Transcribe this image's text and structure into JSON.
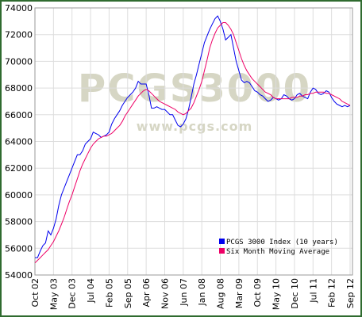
{
  "chart_data": {
    "type": "line",
    "watermark": {
      "title": "PCGS3000",
      "subtitle": "www.pcgs.com"
    },
    "categories": [
      "Oct 02",
      null,
      null,
      null,
      null,
      null,
      null,
      "May 03",
      null,
      null,
      null,
      null,
      null,
      null,
      "Dec 03",
      null,
      null,
      null,
      null,
      null,
      null,
      "Jul 04",
      null,
      null,
      null,
      null,
      null,
      null,
      "Feb 05",
      null,
      null,
      null,
      null,
      null,
      null,
      "Sep 05",
      null,
      null,
      null,
      null,
      null,
      null,
      "Apr 06",
      null,
      null,
      null,
      null,
      null,
      null,
      "Nov 06",
      null,
      null,
      null,
      null,
      null,
      null,
      "Jun 07",
      null,
      null,
      null,
      null,
      null,
      null,
      "Jan 08",
      null,
      null,
      null,
      null,
      null,
      null,
      "Aug 08",
      null,
      null,
      null,
      null,
      null,
      null,
      "Mar 09",
      null,
      null,
      null,
      null,
      null,
      null,
      "Oct 09",
      null,
      null,
      null,
      null,
      null,
      null,
      "May 10",
      null,
      null,
      null,
      null,
      null,
      null,
      "Dec 10",
      null,
      null,
      null,
      null,
      null,
      null,
      "Jul 11",
      null,
      null,
      null,
      null,
      null,
      null,
      "Feb 12",
      null,
      null,
      null,
      null,
      null,
      null,
      "Sep 12"
    ],
    "series": [
      {
        "name": "PCGS 3000 Index (10 years)",
        "color": "#0000ee",
        "values": [
          55300,
          55300,
          55800,
          56200,
          56400,
          57300,
          57000,
          57500,
          58200,
          59200,
          60000,
          60500,
          61000,
          61500,
          62000,
          62500,
          63000,
          63000,
          63300,
          63800,
          64000,
          64200,
          64700,
          64600,
          64500,
          64300,
          64400,
          64500,
          64700,
          65300,
          65700,
          66000,
          66300,
          66700,
          67000,
          67300,
          67500,
          67700,
          68000,
          68500,
          68300,
          68300,
          68300,
          67500,
          66500,
          66500,
          66600,
          66500,
          66400,
          66400,
          66200,
          66000,
          66000,
          65600,
          65200,
          65100,
          65300,
          65700,
          66400,
          67300,
          68300,
          69000,
          69800,
          70600,
          71400,
          71900,
          72400,
          72800,
          73200,
          73400,
          73000,
          72400,
          71600,
          71800,
          72000,
          71000,
          70000,
          69300,
          68600,
          68400,
          68500,
          68400,
          68100,
          67800,
          67700,
          67500,
          67400,
          67200,
          67000,
          67100,
          67300,
          67200,
          67100,
          67200,
          67500,
          67400,
          67200,
          67100,
          67200,
          67500,
          67600,
          67400,
          67300,
          67200,
          67700,
          68000,
          67900,
          67600,
          67500,
          67600,
          67800,
          67700,
          67300,
          67000,
          66800,
          66700,
          66600,
          66700,
          66600,
          66700
        ]
      },
      {
        "name": "Six Month Moving Average",
        "color": "#ee0066",
        "values": [
          54900,
          55100,
          55300,
          55500,
          55700,
          55900,
          56200,
          56500,
          56900,
          57300,
          57800,
          58300,
          58900,
          59500,
          60000,
          60600,
          61200,
          61800,
          62300,
          62700,
          63100,
          63500,
          63800,
          64000,
          64200,
          64300,
          64400,
          64400,
          64500,
          64600,
          64800,
          65000,
          65200,
          65500,
          65900,
          66200,
          66500,
          66800,
          67100,
          67400,
          67600,
          67800,
          67900,
          67800,
          67600,
          67400,
          67200,
          67000,
          66900,
          66800,
          66700,
          66600,
          66500,
          66400,
          66200,
          66100,
          66000,
          66100,
          66300,
          66500,
          66900,
          67400,
          67900,
          68500,
          69300,
          70100,
          71000,
          71600,
          72100,
          72500,
          72700,
          72900,
          72900,
          72700,
          72400,
          72000,
          71400,
          70800,
          70200,
          69700,
          69300,
          69000,
          68700,
          68500,
          68300,
          68100,
          67900,
          67700,
          67600,
          67500,
          67300,
          67200,
          67200,
          67200,
          67200,
          67200,
          67200,
          67300,
          67300,
          67300,
          67400,
          67400,
          67500,
          67500,
          67600,
          67600,
          67700,
          67700,
          67700,
          67700,
          67600,
          67600,
          67500,
          67400,
          67300,
          67200,
          67000,
          66900,
          66800,
          66700
        ]
      }
    ],
    "ylim": [
      54000,
      74000
    ],
    "yticks": [
      54000,
      56000,
      58000,
      60000,
      62000,
      64000,
      66000,
      68000,
      70000,
      72000,
      74000
    ],
    "grid": true,
    "legend": "bottom-right"
  }
}
